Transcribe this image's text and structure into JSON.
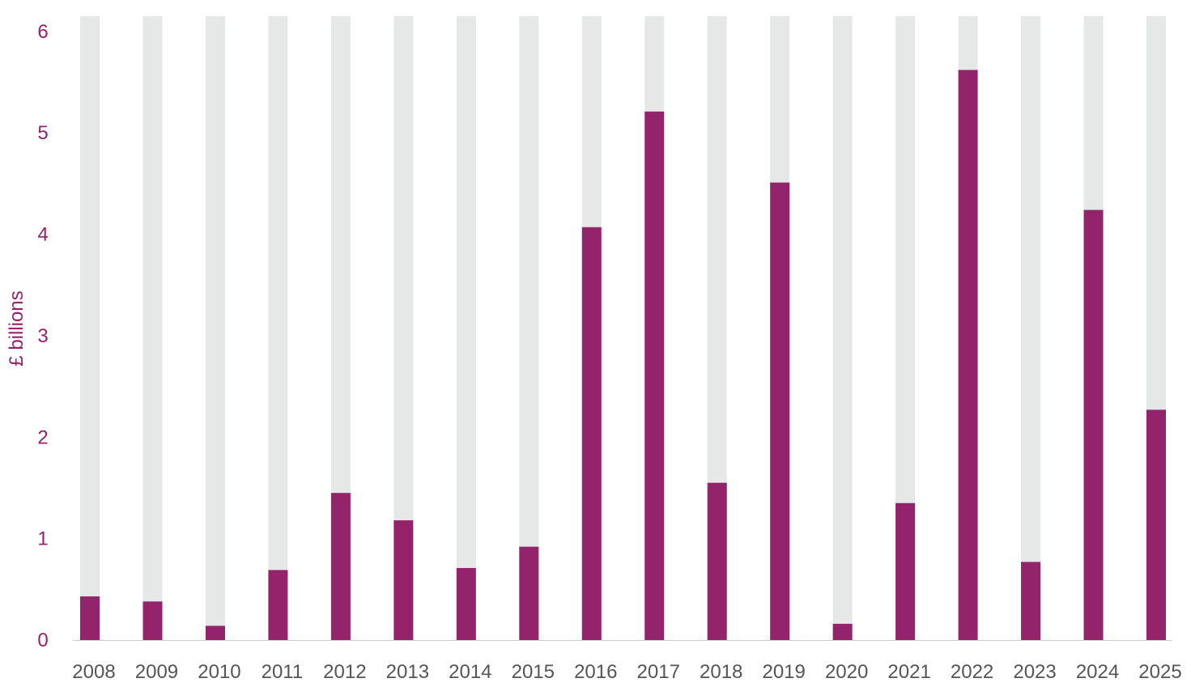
{
  "chart_data": {
    "type": "bar",
    "title": "",
    "xlabel": "",
    "ylabel": "£ billions",
    "ylim": [
      0,
      6.15
    ],
    "yticks": [
      0,
      1,
      2,
      3,
      4,
      5,
      6
    ],
    "grid": false,
    "legend": "none",
    "background_bar_value": 6.15,
    "colors": {
      "series": "#93236b",
      "background_bar": "#e6e7e7",
      "ytick": "#93236b",
      "xtick": "#555555",
      "axis": "#cccccc"
    },
    "categories": [
      "2008",
      "2009",
      "2010",
      "2011",
      "2012",
      "2013",
      "2014",
      "2015",
      "2016",
      "2017",
      "2018",
      "2019",
      "2020",
      "2021",
      "2022",
      "2023",
      "2024",
      "2025"
    ],
    "values": [
      0.43,
      0.38,
      0.14,
      0.69,
      1.45,
      1.18,
      0.71,
      0.92,
      4.07,
      5.21,
      1.55,
      4.51,
      0.16,
      1.35,
      5.62,
      0.77,
      4.24,
      2.27
    ]
  }
}
